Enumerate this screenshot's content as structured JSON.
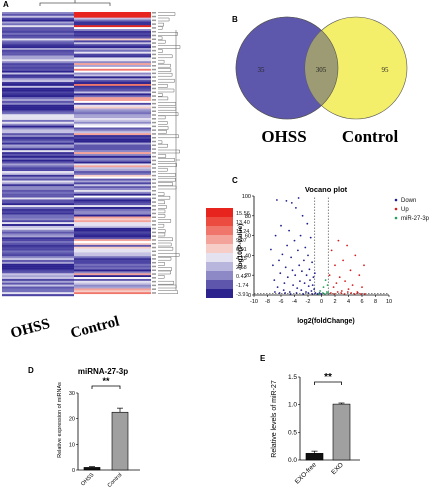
{
  "panels": {
    "a": "A",
    "b": "B",
    "c": "C",
    "d": "D",
    "e": "E"
  },
  "chart_data": [
    {
      "panel": "A",
      "type": "heatmap",
      "columns": [
        "OHSS",
        "Control"
      ],
      "colorbar_ticks": [
        "15.56",
        "13.40",
        "11.24",
        "9.07",
        "6.91",
        "4.75",
        "2.58",
        "0.42",
        "-1.74",
        "-3.91"
      ],
      "colorbar_colors": [
        "#e8241e",
        "#ec4b40",
        "#f0766c",
        "#f4a39b",
        "#f7cdc8",
        "#e4e2f1",
        "#b9b6dd",
        "#8d88c6",
        "#5d56ac",
        "#2c238f"
      ]
    },
    {
      "panel": "B",
      "type": "venn",
      "sets": [
        "OHSS",
        "Control"
      ],
      "only_left": 35,
      "intersection": 305,
      "only_right": 95,
      "colors": {
        "left": "#5e58ad",
        "right": "#f4ef6a",
        "overlap": "#9c9b74"
      }
    },
    {
      "panel": "C",
      "type": "scatter",
      "title": "Vocano plot",
      "xlabel": "log2(foldChange)",
      "ylabel": "-log10(P-value)",
      "xlim": [
        -10,
        10
      ],
      "ylim": [
        0,
        100
      ],
      "xticks": [
        -10,
        -8,
        -6,
        -4,
        -2,
        0,
        2,
        4,
        6,
        8,
        10
      ],
      "yticks": [
        0,
        20,
        40,
        60,
        80,
        100
      ],
      "legend": [
        {
          "name": "Down",
          "color": "#1e1e8c"
        },
        {
          "name": "Up",
          "color": "#d61e1e"
        },
        {
          "name": "miR-27-3p",
          "color": "#1f9e5a"
        }
      ],
      "series": [
        {
          "name": "Down",
          "points": [
            [
              -7.5,
              46
            ],
            [
              -7.2,
              30
            ],
            [
              -7,
              15
            ],
            [
              -6.8,
              60
            ],
            [
              -6.5,
              8
            ],
            [
              -6.3,
              35
            ],
            [
              -6.1,
              22
            ],
            [
              -6,
              70
            ],
            [
              -5.8,
              41
            ],
            [
              -5.6,
              5
            ],
            [
              -5.5,
              12
            ],
            [
              -5.3,
              28
            ],
            [
              -5.1,
              50
            ],
            [
              -5,
              18
            ],
            [
              -4.8,
              65
            ],
            [
              -4.7,
              3
            ],
            [
              -4.5,
              38
            ],
            [
              -4.3,
              25
            ],
            [
              -4.2,
              10
            ],
            [
              -4,
              55
            ],
            [
              -3.9,
              20
            ],
            [
              -3.8,
              88
            ],
            [
              -3.6,
              7
            ],
            [
              -3.5,
              45
            ],
            [
              -3.3,
              30
            ],
            [
              -3.2,
              14
            ],
            [
              -3.1,
              60
            ],
            [
              -3,
              5
            ],
            [
              -2.9,
              24
            ],
            [
              -2.8,
              80
            ],
            [
              -2.6,
              35
            ],
            [
              -2.5,
              12
            ],
            [
              -2.4,
              48
            ],
            [
              -2.3,
              3
            ],
            [
              -2.2,
              20
            ],
            [
              -2.1,
              72
            ],
            [
              -2,
              40
            ],
            [
              -1.9,
              9
            ],
            [
              -1.8,
              26
            ],
            [
              -1.7,
              15
            ],
            [
              -1.6,
              58
            ],
            [
              -1.5,
              4
            ],
            [
              -1.4,
              33
            ],
            [
              -1.3,
              10
            ],
            [
              -1.2,
              18
            ],
            [
              -1.1,
              6
            ],
            [
              -1,
              22
            ],
            [
              -6.6,
              96
            ],
            [
              -5.2,
              95
            ],
            [
              -4.4,
              93
            ],
            [
              -3.4,
              98
            ],
            [
              -6.9,
              3
            ],
            [
              -6.2,
              2
            ],
            [
              -5.4,
              2
            ],
            [
              -4.6,
              1
            ],
            [
              -3.7,
              2
            ],
            [
              -2.7,
              1
            ],
            [
              -1.95,
              2
            ],
            [
              -1.35,
              1
            ],
            [
              -0.9,
              2
            ],
            [
              -0.6,
              1
            ],
            [
              -0.3,
              2
            ],
            [
              0,
              1
            ]
          ]
        },
        {
          "name": "Up",
          "points": [
            [
              1.2,
              20
            ],
            [
              1.5,
              45
            ],
            [
              1.8,
              8
            ],
            [
              2,
              30
            ],
            [
              2.2,
              12
            ],
            [
              2.5,
              55
            ],
            [
              2.7,
              18
            ],
            [
              3,
              4
            ],
            [
              3.2,
              35
            ],
            [
              3.5,
              14
            ],
            [
              3.8,
              50
            ],
            [
              4,
              6
            ],
            [
              4.3,
              25
            ],
            [
              4.6,
              10
            ],
            [
              5,
              40
            ],
            [
              5.3,
              3
            ],
            [
              5.6,
              20
            ],
            [
              6,
              8
            ],
            [
              6.3,
              30
            ],
            [
              1.4,
              2
            ],
            [
              1.9,
              1
            ],
            [
              2.4,
              3
            ],
            [
              2.9,
              2
            ],
            [
              3.4,
              1
            ],
            [
              3.9,
              3
            ],
            [
              4.4,
              2
            ],
            [
              4.9,
              1
            ],
            [
              5.4,
              2
            ],
            [
              5.9,
              1
            ],
            [
              6.4,
              1
            ]
          ]
        },
        {
          "name": "miR-27-3p",
          "points": [
            [
              -0.4,
              1
            ],
            [
              0.2,
              2
            ],
            [
              0.5,
              1
            ],
            [
              0.8,
              3
            ],
            [
              1,
              2
            ],
            [
              0.3,
              8
            ],
            [
              0.6,
              15
            ],
            [
              -0.2,
              4
            ],
            [
              0.9,
              10
            ]
          ]
        }
      ],
      "thresholds": {
        "x": [
          -1,
          1
        ],
        "y": 1.3
      }
    },
    {
      "panel": "D",
      "type": "bar",
      "title": "miRNA-27-3p",
      "categories": [
        "OHSS",
        "Control"
      ],
      "values": [
        1,
        22.5
      ],
      "errors": [
        0.3,
        1.6
      ],
      "ylabel": "Relative expression of miRNAs",
      "ylim": [
        0,
        30
      ],
      "yticks": [
        0,
        10,
        20,
        30
      ],
      "significance": "**"
    },
    {
      "panel": "E",
      "type": "bar",
      "categories": [
        "EXO-free",
        "EXO"
      ],
      "values": [
        0.12,
        1.01
      ],
      "errors": [
        0.04,
        0.02
      ],
      "ylabel": "Relative levels of miR-27",
      "ylim": [
        0,
        1.5
      ],
      "yticks": [
        "0.0",
        "0.5",
        "1.0",
        "1.5"
      ],
      "significance": "**"
    }
  ]
}
